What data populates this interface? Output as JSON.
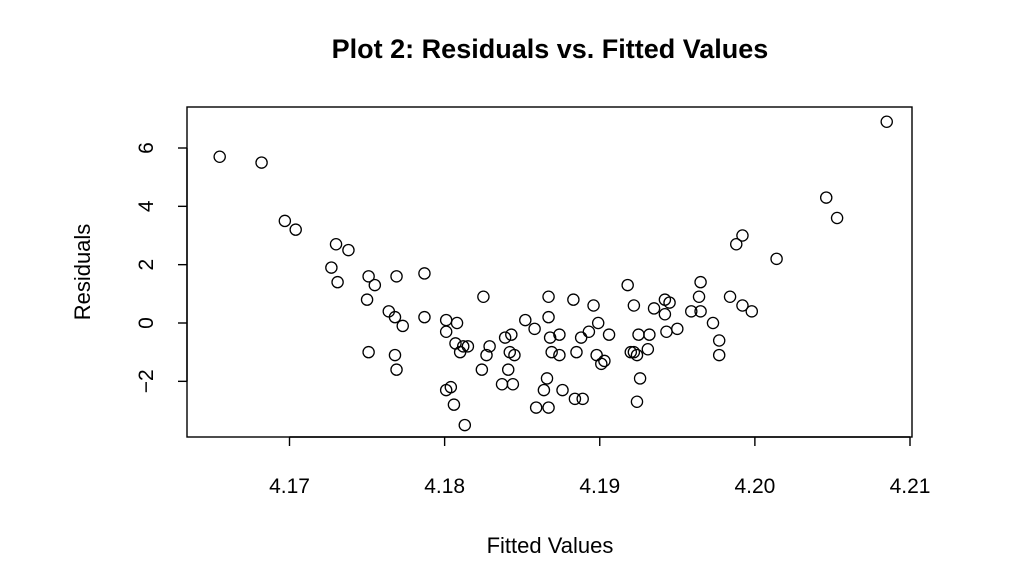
{
  "chart_data": {
    "type": "scatter",
    "title": "Plot 2: Residuals vs. Fitted Values",
    "xlabel": "Fitted Values",
    "ylabel": "Residuals",
    "xlim": [
      4.1635,
      4.2093
    ],
    "ylim": [
      -3.9,
      7.4
    ],
    "xticks": [
      4.17,
      4.18,
      4.19,
      4.2,
      4.21
    ],
    "xtick_labels": [
      "4.17",
      "4.18",
      "4.19",
      "4.20",
      "4.21"
    ],
    "yticks": [
      -2,
      0,
      2,
      4,
      6
    ],
    "ytick_labels": [
      "−2",
      "0",
      "2",
      "4",
      "6"
    ],
    "grid": false,
    "legend": null,
    "marker": "open-circle",
    "points": [
      {
        "x": 4.1655,
        "y": 5.7
      },
      {
        "x": 4.1682,
        "y": 5.5
      },
      {
        "x": 4.1697,
        "y": 3.5
      },
      {
        "x": 4.1704,
        "y": 3.2
      },
      {
        "x": 4.1727,
        "y": 1.9
      },
      {
        "x": 4.173,
        "y": 2.7
      },
      {
        "x": 4.1731,
        "y": 1.4
      },
      {
        "x": 4.1738,
        "y": 2.5
      },
      {
        "x": 4.175,
        "y": 0.8
      },
      {
        "x": 4.1751,
        "y": 1.6
      },
      {
        "x": 4.1751,
        "y": -1.0
      },
      {
        "x": 4.1755,
        "y": 1.3
      },
      {
        "x": 4.1764,
        "y": 0.4
      },
      {
        "x": 4.1768,
        "y": 0.2
      },
      {
        "x": 4.1768,
        "y": -1.1
      },
      {
        "x": 4.1769,
        "y": -1.6
      },
      {
        "x": 4.1769,
        "y": 1.6
      },
      {
        "x": 4.1773,
        "y": -0.1
      },
      {
        "x": 4.1787,
        "y": 1.7
      },
      {
        "x": 4.1787,
        "y": 0.2
      },
      {
        "x": 4.1801,
        "y": -2.3
      },
      {
        "x": 4.1801,
        "y": 0.1
      },
      {
        "x": 4.1801,
        "y": -0.3
      },
      {
        "x": 4.1804,
        "y": -2.2
      },
      {
        "x": 4.1806,
        "y": -2.8
      },
      {
        "x": 4.1807,
        "y": -0.7
      },
      {
        "x": 4.1808,
        "y": 0.0
      },
      {
        "x": 4.181,
        "y": -1.0
      },
      {
        "x": 4.1812,
        "y": -0.8
      },
      {
        "x": 4.1813,
        "y": -3.5
      },
      {
        "x": 4.1815,
        "y": -0.8
      },
      {
        "x": 4.1824,
        "y": -1.6
      },
      {
        "x": 4.1825,
        "y": 0.9
      },
      {
        "x": 4.1827,
        "y": -1.1
      },
      {
        "x": 4.1829,
        "y": -0.8
      },
      {
        "x": 4.1837,
        "y": -2.1
      },
      {
        "x": 4.1839,
        "y": -0.5
      },
      {
        "x": 4.1841,
        "y": -1.6
      },
      {
        "x": 4.1842,
        "y": -1.0
      },
      {
        "x": 4.1843,
        "y": -0.4
      },
      {
        "x": 4.1844,
        "y": -2.1
      },
      {
        "x": 4.1845,
        "y": -1.1
      },
      {
        "x": 4.1852,
        "y": 0.1
      },
      {
        "x": 4.1858,
        "y": -0.2
      },
      {
        "x": 4.1859,
        "y": -2.9
      },
      {
        "x": 4.1864,
        "y": -2.3
      },
      {
        "x": 4.1866,
        "y": -1.9
      },
      {
        "x": 4.1867,
        "y": -2.9
      },
      {
        "x": 4.1867,
        "y": 0.9
      },
      {
        "x": 4.1867,
        "y": 0.2
      },
      {
        "x": 4.1868,
        "y": -0.5
      },
      {
        "x": 4.1869,
        "y": -1.0
      },
      {
        "x": 4.1874,
        "y": -1.1
      },
      {
        "x": 4.1874,
        "y": -0.4
      },
      {
        "x": 4.1876,
        "y": -2.3
      },
      {
        "x": 4.1883,
        "y": 0.8
      },
      {
        "x": 4.1884,
        "y": -2.6
      },
      {
        "x": 4.1885,
        "y": -1.0
      },
      {
        "x": 4.1888,
        "y": -0.5
      },
      {
        "x": 4.1889,
        "y": -2.6
      },
      {
        "x": 4.1893,
        "y": -0.3
      },
      {
        "x": 4.1896,
        "y": 0.6
      },
      {
        "x": 4.1898,
        "y": -1.1
      },
      {
        "x": 4.1899,
        "y": 0.0
      },
      {
        "x": 4.1901,
        "y": -1.4
      },
      {
        "x": 4.1903,
        "y": -1.3
      },
      {
        "x": 4.1906,
        "y": -0.4
      },
      {
        "x": 4.1918,
        "y": 1.3
      },
      {
        "x": 4.192,
        "y": -1.0
      },
      {
        "x": 4.1922,
        "y": 0.6
      },
      {
        "x": 4.1922,
        "y": -1.0
      },
      {
        "x": 4.1924,
        "y": -1.1
      },
      {
        "x": 4.1924,
        "y": -2.7
      },
      {
        "x": 4.1925,
        "y": -0.4
      },
      {
        "x": 4.1926,
        "y": -1.9
      },
      {
        "x": 4.1931,
        "y": -0.9
      },
      {
        "x": 4.1932,
        "y": -0.4
      },
      {
        "x": 4.1935,
        "y": 0.5
      },
      {
        "x": 4.1942,
        "y": 0.8
      },
      {
        "x": 4.1942,
        "y": 0.3
      },
      {
        "x": 4.1943,
        "y": -0.3
      },
      {
        "x": 4.1945,
        "y": 0.7
      },
      {
        "x": 4.195,
        "y": -0.2
      },
      {
        "x": 4.1959,
        "y": 0.4
      },
      {
        "x": 4.1964,
        "y": 0.9
      },
      {
        "x": 4.1965,
        "y": 1.4
      },
      {
        "x": 4.1965,
        "y": 0.4
      },
      {
        "x": 4.1973,
        "y": 0.0
      },
      {
        "x": 4.1977,
        "y": -1.1
      },
      {
        "x": 4.1977,
        "y": -0.6
      },
      {
        "x": 4.1984,
        "y": 0.9
      },
      {
        "x": 4.1988,
        "y": 2.7
      },
      {
        "x": 4.1992,
        "y": 3.0
      },
      {
        "x": 4.1992,
        "y": 0.6
      },
      {
        "x": 4.1998,
        "y": 0.4
      },
      {
        "x": 4.2014,
        "y": 2.2
      },
      {
        "x": 4.2046,
        "y": 4.3
      },
      {
        "x": 4.2053,
        "y": 3.6
      },
      {
        "x": 4.2085,
        "y": 6.9
      }
    ]
  }
}
